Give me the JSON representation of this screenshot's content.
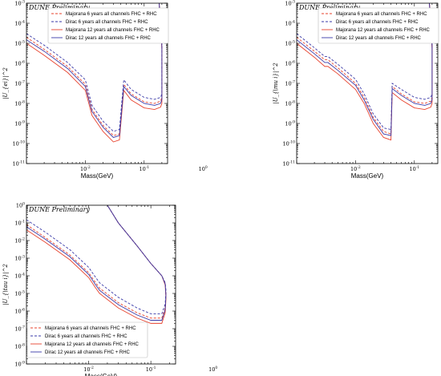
{
  "chart_data": [
    {
      "type": "line",
      "title": "DUNE Preliminary",
      "xlabel": "Mass(GeV)",
      "ylabel": "|U_{ei}|^2",
      "xscale": "log",
      "yscale": "log",
      "xlim": [
        0.01,
        2.5
      ],
      "ylim": [
        1e-11,
        0.001
      ],
      "xticks": [
        "10^{-2}",
        "10^{-1}",
        "10^{0}"
      ],
      "yticks": [
        "10^{-11}",
        "10^{-10}",
        "10^{-9}",
        "10^{-8}",
        "10^{-7}",
        "10^{-6}",
        "10^{-5}",
        "10^{-4}",
        "10^{-3}"
      ],
      "legend_position": "top-right",
      "series": [
        {
          "name": "Majorana 6 years all channels FHC + RHC",
          "color": "#e8432e",
          "dash": "dashed",
          "x": [
            0.01,
            0.02,
            0.05,
            0.1,
            0.13,
            0.2,
            0.3,
            0.38,
            0.45,
            0.6,
            1.0,
            1.5,
            1.9,
            2.0,
            2.0,
            1.8
          ],
          "y": [
            2e-05,
            5e-06,
            7e-07,
            9e-08,
            5e-09,
            8e-10,
            2.5e-10,
            3e-10,
            9e-08,
            3e-08,
            1.2e-08,
            1e-08,
            1.3e-08,
            2e-08,
            8e-06,
            0.001
          ]
        },
        {
          "name": "Dirac 6 years all channels FHC + RHC",
          "color": "#3a3aa8",
          "dash": "dashed",
          "x": [
            0.01,
            0.02,
            0.05,
            0.1,
            0.13,
            0.2,
            0.3,
            0.38,
            0.45,
            0.6,
            1.0,
            1.5,
            1.9,
            2.0,
            2.0,
            1.8
          ],
          "y": [
            3e-05,
            8e-06,
            1.1e-06,
            1.5e-07,
            8e-09,
            1.3e-09,
            4e-10,
            5e-10,
            1.5e-07,
            5e-08,
            2e-08,
            1.6e-08,
            2e-08,
            3e-08,
            1e-05,
            0.001
          ]
        },
        {
          "name": "Majorana 12 years all channels FHC + RHC",
          "color": "#e8432e",
          "dash": "solid",
          "x": [
            0.01,
            0.02,
            0.05,
            0.1,
            0.13,
            0.2,
            0.3,
            0.38,
            0.45,
            0.6,
            1.0,
            1.5,
            1.9,
            2.0,
            2.0,
            1.8
          ],
          "y": [
            1e-05,
            2.5e-06,
            3.5e-07,
            4.5e-08,
            2.5e-09,
            4e-10,
            1.2e-10,
            1.5e-10,
            4.5e-08,
            1.5e-08,
            6e-09,
            5e-09,
            6.5e-09,
            1e-08,
            5e-06,
            0.001
          ]
        },
        {
          "name": "Dirac 12 years all channels FHC + RHC",
          "color": "#3a3aa8",
          "dash": "solid",
          "x": [
            0.01,
            0.02,
            0.05,
            0.1,
            0.13,
            0.2,
            0.3,
            0.38,
            0.45,
            0.6,
            1.0,
            1.5,
            1.9,
            2.0,
            2.0,
            1.8
          ],
          "y": [
            1.5e-05,
            4e-06,
            5.5e-07,
            7e-08,
            4e-09,
            6.5e-10,
            2e-10,
            2.5e-10,
            7e-08,
            2.5e-08,
            1e-08,
            8e-09,
            1e-08,
            1.6e-08,
            7e-06,
            0.001
          ]
        }
      ]
    },
    {
      "type": "line",
      "title": "DUNE Preliminary",
      "xlabel": "Mass(GeV)",
      "ylabel": "|U_{\\mu i}|^2",
      "xscale": "log",
      "yscale": "log",
      "xlim": [
        0.01,
        2.5
      ],
      "ylim": [
        1e-11,
        0.001
      ],
      "xticks": [
        "10^{-2}",
        "10^{-1}",
        "10^{0}"
      ],
      "yticks": [
        "10^{-11}",
        "10^{-10}",
        "10^{-9}",
        "10^{-8}",
        "10^{-7}",
        "10^{-6}",
        "10^{-5}",
        "10^{-4}",
        "10^{-3}"
      ],
      "legend_position": "top-right",
      "series": [
        {
          "name": "Majorana 6 years all channels FHC + RHC",
          "color": "#e8432e",
          "dash": "dashed",
          "x": [
            0.01,
            0.02,
            0.03,
            0.034,
            0.05,
            0.1,
            0.14,
            0.2,
            0.3,
            0.4,
            0.42,
            0.6,
            1.0,
            1.5,
            1.9,
            2.0,
            2.0,
            1.8
          ],
          "y": [
            2e-05,
            4e-06,
            1.5e-06,
            1.5e-06,
            6e-07,
            1e-07,
            2e-08,
            2e-09,
            4e-10,
            3e-10,
            7e-08,
            3e-08,
            1.2e-08,
            1e-08,
            1.3e-08,
            2e-08,
            8e-06,
            0.001
          ]
        },
        {
          "name": "Dirac 6 years all channels FHC + RHC",
          "color": "#3a3aa8",
          "dash": "dashed",
          "x": [
            0.01,
            0.02,
            0.03,
            0.034,
            0.05,
            0.1,
            0.14,
            0.2,
            0.3,
            0.4,
            0.42,
            0.6,
            1.0,
            1.5,
            1.9,
            2.0,
            2.0,
            1.8
          ],
          "y": [
            3e-05,
            6e-06,
            2.2e-06,
            2.2e-06,
            9e-07,
            1.6e-07,
            3e-08,
            3e-09,
            6e-10,
            5e-10,
            1e-07,
            5e-08,
            2e-08,
            1.6e-08,
            2e-08,
            3e-08,
            1e-05,
            0.001
          ]
        },
        {
          "name": "Majorana 12 years all channels FHC + RHC",
          "color": "#e8432e",
          "dash": "solid",
          "x": [
            0.01,
            0.02,
            0.03,
            0.034,
            0.05,
            0.1,
            0.14,
            0.2,
            0.3,
            0.4,
            0.42,
            0.6,
            1.0,
            1.5,
            1.9,
            2.0,
            2.0,
            1.8
          ],
          "y": [
            1e-05,
            2e-06,
            7e-07,
            7e-07,
            3e-07,
            5e-08,
            1e-08,
            1e-09,
            2e-10,
            1.5e-10,
            3.5e-08,
            1.5e-08,
            6e-09,
            5e-09,
            6.5e-09,
            1e-08,
            5e-06,
            0.001
          ]
        },
        {
          "name": "Dirac 12 years all channels FHC + RHC",
          "color": "#3a3aa8",
          "dash": "solid",
          "x": [
            0.01,
            0.02,
            0.03,
            0.034,
            0.05,
            0.1,
            0.14,
            0.2,
            0.3,
            0.4,
            0.42,
            0.6,
            1.0,
            1.5,
            1.9,
            2.0,
            2.0,
            1.8
          ],
          "y": [
            1.5e-05,
            3e-06,
            1.1e-06,
            1.1e-06,
            4.5e-07,
            8e-08,
            1.5e-08,
            1.6e-09,
            3e-10,
            2.5e-10,
            5.5e-08,
            2.5e-08,
            1e-08,
            8e-09,
            1e-08,
            1.6e-08,
            7e-06,
            0.001
          ]
        }
      ]
    },
    {
      "type": "line",
      "title": "DUNE Preliminary",
      "xlabel": "Mass(GeV)",
      "ylabel": "|U_{\\tau i}|^2",
      "xscale": "log",
      "yscale": "log",
      "xlim": [
        0.01,
        2.5
      ],
      "ylim": [
        1e-09,
        1
      ],
      "xticks": [
        "10^{-2}",
        "10^{-1}",
        "10^{0}"
      ],
      "yticks": [
        "10^{-9}",
        "10^{-8}",
        "10^{-7}",
        "10^{-6}",
        "10^{-5}",
        "10^{-4}",
        "10^{-3}",
        "10^{-2}",
        "10^{-1}",
        "10^{0}"
      ],
      "legend_position": "bottom-left",
      "series": [
        {
          "name": "Majorana 6 years all channels FHC + RHC",
          "color": "#e8432e",
          "dash": "dashed",
          "x": [
            0.01,
            0.02,
            0.05,
            0.1,
            0.13,
            0.15,
            0.3,
            0.6,
            1.0,
            1.5,
            1.7,
            1.75,
            1.7,
            1.5,
            1.0,
            0.6,
            0.3,
            0.2
          ],
          "y": [
            0.08,
            0.015,
            0.0015,
            0.00015,
            4e-05,
            2e-05,
            3e-06,
            8e-07,
            4e-07,
            4e-07,
            1.5e-06,
            1e-05,
            4e-05,
            0.0001,
            0.0005,
            0.005,
            0.1,
            1
          ]
        },
        {
          "name": "Dirac 6 years all channels FHC + RHC",
          "color": "#3a3aa8",
          "dash": "dashed",
          "x": [
            0.01,
            0.02,
            0.05,
            0.1,
            0.13,
            0.15,
            0.3,
            0.6,
            1.0,
            1.5,
            1.7,
            1.75,
            1.7,
            1.5,
            1.0,
            0.6,
            0.3,
            0.2
          ],
          "y": [
            0.15,
            0.03,
            0.003,
            0.0003,
            8e-05,
            4e-05,
            6e-06,
            1.5e-06,
            7e-07,
            7e-07,
            2.5e-06,
            1.5e-05,
            4e-05,
            0.0001,
            0.0005,
            0.005,
            0.1,
            1
          ]
        },
        {
          "name": "Majorana 12 years all channels FHC + RHC",
          "color": "#e8432e",
          "dash": "solid",
          "x": [
            0.01,
            0.02,
            0.05,
            0.1,
            0.13,
            0.15,
            0.3,
            0.6,
            1.0,
            1.5,
            1.7,
            1.75,
            1.7,
            1.5,
            1.0,
            0.6,
            0.3,
            0.2
          ],
          "y": [
            0.04,
            0.008,
            0.0008,
            8e-05,
            2e-05,
            1e-05,
            1.5e-06,
            4e-07,
            2e-07,
            2e-07,
            8e-07,
            5e-06,
            3e-05,
            0.0001,
            0.0005,
            0.005,
            0.1,
            1
          ]
        },
        {
          "name": "Dirac 12 years all channels FHC + RHC",
          "color": "#3a3aa8",
          "dash": "solid",
          "x": [
            0.01,
            0.02,
            0.05,
            0.1,
            0.13,
            0.15,
            0.3,
            0.6,
            1.0,
            1.5,
            1.7,
            1.75,
            1.7,
            1.5,
            1.0,
            0.6,
            0.3,
            0.2
          ],
          "y": [
            0.06,
            0.012,
            0.0012,
            0.00012,
            3e-05,
            1.5e-05,
            2.3e-06,
            6e-07,
            3e-07,
            3e-07,
            1.2e-06,
            8e-06,
            3.5e-05,
            0.0001,
            0.0005,
            0.005,
            0.1,
            1
          ]
        }
      ]
    }
  ]
}
